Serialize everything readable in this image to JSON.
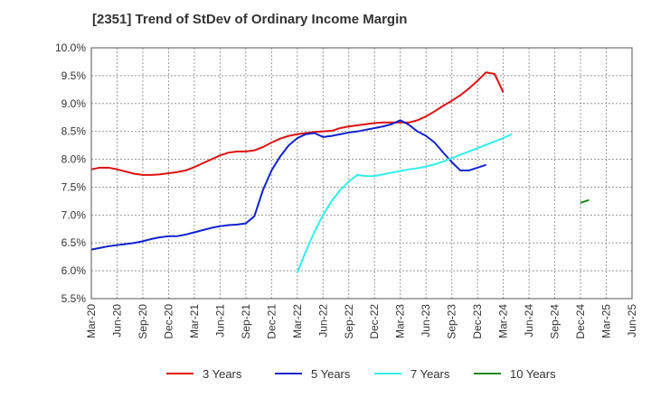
{
  "chart_data": {
    "type": "line",
    "title": "[2351]  Trend of StDev of Ordinary Income Margin",
    "xlabel": "",
    "ylabel": "",
    "x_start": "2020-03",
    "x_step_months": 3,
    "x_tick_labels": [
      "Mar-20",
      "Jun-20",
      "Sep-20",
      "Dec-20",
      "Mar-21",
      "Jun-21",
      "Sep-21",
      "Dec-21",
      "Mar-22",
      "Jun-22",
      "Sep-22",
      "Dec-22",
      "Mar-23",
      "Jun-23",
      "Sep-23",
      "Dec-23",
      "Mar-24",
      "Jun-24",
      "Sep-24",
      "Dec-24",
      "Mar-25",
      "Jun-25"
    ],
    "y_tick_labels": [
      "5.5%",
      "6.0%",
      "6.5%",
      "7.0%",
      "7.5%",
      "8.0%",
      "8.5%",
      "9.0%",
      "9.5%",
      "10.0%"
    ],
    "ylim": [
      5.5,
      10.0
    ],
    "grid": true,
    "legend_position": "bottom",
    "series": [
      {
        "name": "3 Years",
        "color": "#dd1111",
        "start": "2020-03",
        "values": [
          7.82,
          7.85,
          7.85,
          7.82,
          7.78,
          7.74,
          7.72,
          7.72,
          7.73,
          7.75,
          7.77,
          7.8,
          7.86,
          7.93,
          8.0,
          8.07,
          8.12,
          8.14,
          8.14,
          8.16,
          8.22,
          8.3,
          8.37,
          8.42,
          8.45,
          8.47,
          8.49,
          8.5,
          8.51,
          8.56,
          8.59,
          8.61,
          8.63,
          8.65,
          8.66,
          8.66,
          8.66,
          8.66,
          8.7,
          8.77,
          8.86,
          8.96,
          9.05,
          9.15,
          9.27,
          9.41,
          9.56,
          9.53,
          9.2
        ]
      },
      {
        "name": "5 Years",
        "color": "#1122cc",
        "start": "2020-03",
        "values": [
          6.38,
          6.41,
          6.44,
          6.46,
          6.48,
          6.5,
          6.53,
          6.57,
          6.6,
          6.62,
          6.62,
          6.65,
          6.69,
          6.73,
          6.77,
          6.8,
          6.82,
          6.83,
          6.85,
          6.98,
          7.45,
          7.8,
          8.05,
          8.25,
          8.38,
          8.45,
          8.47,
          8.4,
          8.42,
          8.45,
          8.48,
          8.5,
          8.53,
          8.56,
          8.59,
          8.63,
          8.7,
          8.62,
          8.5,
          8.42,
          8.3,
          8.12,
          7.95,
          7.8,
          7.8,
          7.85,
          7.9
        ]
      },
      {
        "name": "7 Years",
        "color": "#33eeee",
        "start": "2022-03",
        "values": [
          5.97,
          6.35,
          6.7,
          7.0,
          7.25,
          7.45,
          7.6,
          7.72,
          7.7,
          7.7,
          7.73,
          7.76,
          7.79,
          7.82,
          7.84,
          7.87,
          7.91,
          7.96,
          8.02,
          8.08,
          8.14,
          8.2,
          8.26,
          8.32,
          8.38,
          8.45
        ]
      },
      {
        "name": "10 Years",
        "color": "#228822",
        "start": "2024-12",
        "values": [
          7.22,
          7.27
        ]
      }
    ]
  }
}
